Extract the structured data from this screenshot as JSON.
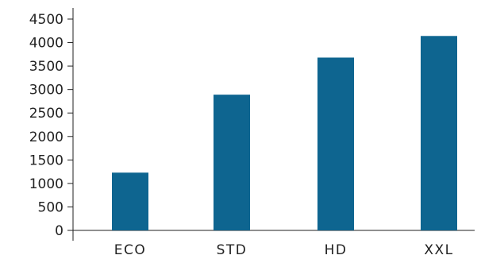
{
  "chart_data": {
    "type": "bar",
    "categories": [
      "ECO",
      "STD",
      "HD",
      "XXL"
    ],
    "values": [
      1230,
      2890,
      3680,
      4140
    ],
    "ylim": [
      0,
      4500
    ],
    "yticks": [
      0,
      500,
      1000,
      1500,
      2000,
      2500,
      3000,
      3500,
      4000,
      4500
    ],
    "grid": false,
    "legend": "none",
    "bar_color": "#0e6590",
    "axis_color": "#222222"
  }
}
